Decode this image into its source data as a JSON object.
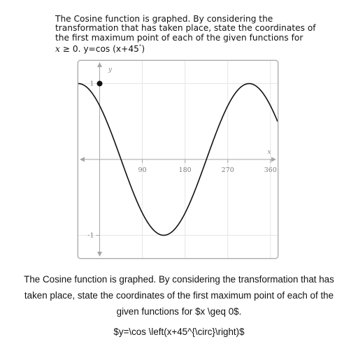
{
  "question_top": {
    "line1": "The Cosine function is graphed. By considering the",
    "line2": "transformation that has taken place, state the coordinates of",
    "line3": "the first maximum point of each of the given functions for",
    "line4_var": "x",
    "line4_rest": " ≥ 0. y=cos (x+45",
    "line4_deg": "°",
    "line4_close": ")"
  },
  "question_bottom": {
    "text": "The Cosine function is graphed. By considering the transformation that has taken place, state the coordinates of the first maximum point of each of the given functions for $x \\geq 0$.",
    "formula": "$y=\\cos \\left(x+45^{\\circ}\\right)$"
  },
  "chart_data": {
    "type": "line",
    "function": "y=cos (x+45°)",
    "phase_shift_deg": 45,
    "xlabel": "x",
    "ylabel": "y",
    "xlim": [
      -45,
      375
    ],
    "ylim": [
      -1.3,
      1.3
    ],
    "x_ticks": [
      {
        "value": 90,
        "label": "90"
      },
      {
        "value": 180,
        "label": "180"
      },
      {
        "value": 270,
        "label": "270"
      },
      {
        "value": 360,
        "label": "360"
      }
    ],
    "y_ticks": [
      {
        "value": 1,
        "label": "1"
      },
      {
        "value": -1,
        "label": "-1"
      }
    ],
    "grid": true,
    "highlighted_point": {
      "x": 0,
      "y": 1
    },
    "line_color": "#111111",
    "grid_color": "#e6e6e6",
    "axis_color": "#a6a6a6"
  }
}
